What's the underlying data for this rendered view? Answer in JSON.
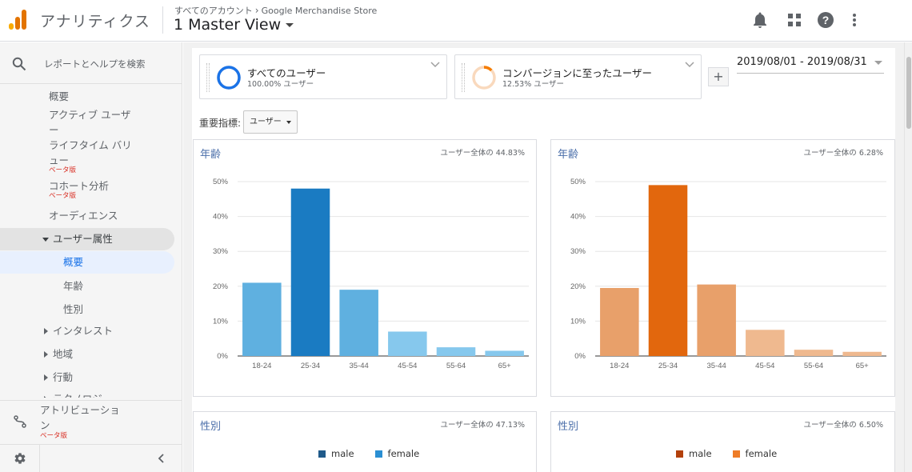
{
  "header": {
    "app_title": "アナリティクス",
    "breadcrumb_account": "すべてのアカウント",
    "breadcrumb_separator": "›",
    "breadcrumb_property": "Google Merchandise Store",
    "view_name": "1 Master View",
    "icons": [
      "bell-icon",
      "apps-icon",
      "help-icon",
      "more-vert-icon"
    ]
  },
  "sidebar": {
    "search_label": "レポートとヘルプを検索",
    "items": [
      {
        "label": "概要"
      },
      {
        "label": "アクティブ ユーザー"
      },
      {
        "label": "ライフタイム バリュー",
        "badge": "ベータ版"
      },
      {
        "label": "コホート分析",
        "badge": "ベータ版"
      },
      {
        "label": "オーディエンス"
      },
      {
        "label": "ユーザー属性",
        "expanded": true
      },
      {
        "label": "概要",
        "selected": true
      },
      {
        "label": "年齢"
      },
      {
        "label": "性別"
      },
      {
        "label": "インタレスト"
      },
      {
        "label": "地域"
      },
      {
        "label": "行動"
      },
      {
        "label": "テクノロジー"
      }
    ],
    "attribution": {
      "label": "アトリビューション",
      "badge": "ベータ版"
    }
  },
  "segments": [
    {
      "name": "すべてのユーザー",
      "sub": "100.00% ユーザー",
      "color": "#1a73e8",
      "percent": 100.0
    },
    {
      "name": "コンバージョンに至ったユーザー",
      "sub": "12.53% ユーザー",
      "color": "#f57c00",
      "percent": 12.53
    }
  ],
  "date_range": "2019/08/01 - 2019/08/31",
  "key_metric": {
    "label": "重要指標:",
    "value": "ユーザー"
  },
  "age_cards": [
    {
      "title": "年齢",
      "note": "ユーザー全体の 44.83%"
    },
    {
      "title": "年齢",
      "note": "ユーザー全体の 6.28%"
    }
  ],
  "gender_cards": [
    {
      "title": "性別",
      "note": "ユーザー全体の 47.13%",
      "legend": [
        {
          "label": "male",
          "color": "#1f5a8a"
        },
        {
          "label": "female",
          "color": "#2a8fd3"
        }
      ]
    },
    {
      "title": "性別",
      "note": "ユーザー全体の 6.50%",
      "legend": [
        {
          "label": "male",
          "color": "#b3410b"
        },
        {
          "label": "female",
          "color": "#ee7c27"
        }
      ]
    }
  ],
  "chart_data": [
    {
      "type": "bar",
      "title": "年齢",
      "categories": [
        "18-24",
        "25-34",
        "35-44",
        "45-54",
        "55-64",
        "65+"
      ],
      "values": [
        21,
        48,
        19,
        7,
        2.5,
        1.5
      ],
      "colors": [
        "#5fb0e0",
        "#1a7bc2",
        "#5fb0e0",
        "#86c8ed",
        "#86c8ed",
        "#86c8ed"
      ],
      "yticks": [
        "0%",
        "10%",
        "20%",
        "30%",
        "40%",
        "50%"
      ],
      "ylim": [
        0,
        50
      ],
      "xlabel": "",
      "ylabel": ""
    },
    {
      "type": "bar",
      "title": "年齢",
      "categories": [
        "18-24",
        "25-34",
        "35-44",
        "45-54",
        "55-64",
        "65+"
      ],
      "values": [
        19.5,
        49,
        20.5,
        7.5,
        1.8,
        1.2
      ],
      "colors": [
        "#e8a06a",
        "#e2670d",
        "#e8a06a",
        "#efb98f",
        "#efb98f",
        "#efb98f"
      ],
      "yticks": [
        "0%",
        "10%",
        "20%",
        "30%",
        "40%",
        "50%"
      ],
      "ylim": [
        0,
        50
      ],
      "xlabel": "",
      "ylabel": ""
    }
  ]
}
